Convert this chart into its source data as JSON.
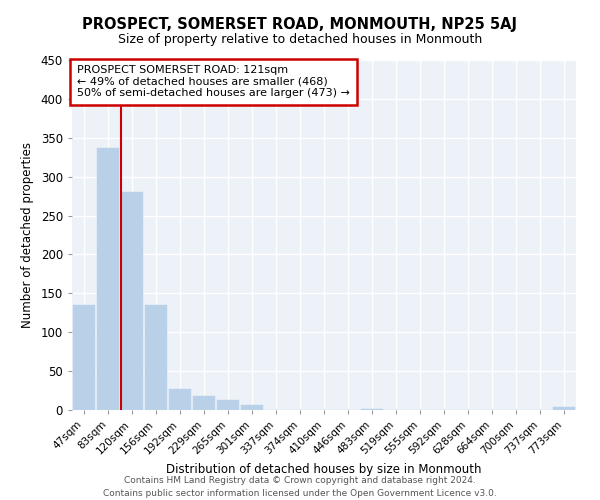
{
  "title": "PROSPECT, SOMERSET ROAD, MONMOUTH, NP25 5AJ",
  "subtitle": "Size of property relative to detached houses in Monmouth",
  "xlabel": "Distribution of detached houses by size in Monmouth",
  "ylabel": "Number of detached properties",
  "bar_labels": [
    "47sqm",
    "83sqm",
    "120sqm",
    "156sqm",
    "192sqm",
    "229sqm",
    "265sqm",
    "301sqm",
    "337sqm",
    "374sqm",
    "410sqm",
    "446sqm",
    "483sqm",
    "519sqm",
    "555sqm",
    "592sqm",
    "628sqm",
    "664sqm",
    "700sqm",
    "737sqm",
    "773sqm"
  ],
  "bar_values": [
    135,
    337,
    280,
    135,
    27,
    18,
    13,
    6,
    0,
    0,
    0,
    0,
    1,
    0,
    0,
    0,
    0,
    0,
    0,
    0,
    4
  ],
  "bar_color": "#b8d0e8",
  "bar_edge_color": "#b8d0e8",
  "vline_x_index": 2,
  "vline_color": "#cc0000",
  "annotation_line1": "PROSPECT SOMERSET ROAD: 121sqm",
  "annotation_line2": "← 49% of detached houses are smaller (468)",
  "annotation_line3": "50% of semi-detached houses are larger (473) →",
  "annotation_box_color": "#ffffff",
  "annotation_box_edge_color": "#cc0000",
  "ylim": [
    0,
    450
  ],
  "yticks": [
    0,
    50,
    100,
    150,
    200,
    250,
    300,
    350,
    400,
    450
  ],
  "footer_line1": "Contains HM Land Registry data © Crown copyright and database right 2024.",
  "footer_line2": "Contains public sector information licensed under the Open Government Licence v3.0.",
  "bg_color": "#edf2f9",
  "fig_bg_color": "#ffffff",
  "grid_color": "#ffffff"
}
